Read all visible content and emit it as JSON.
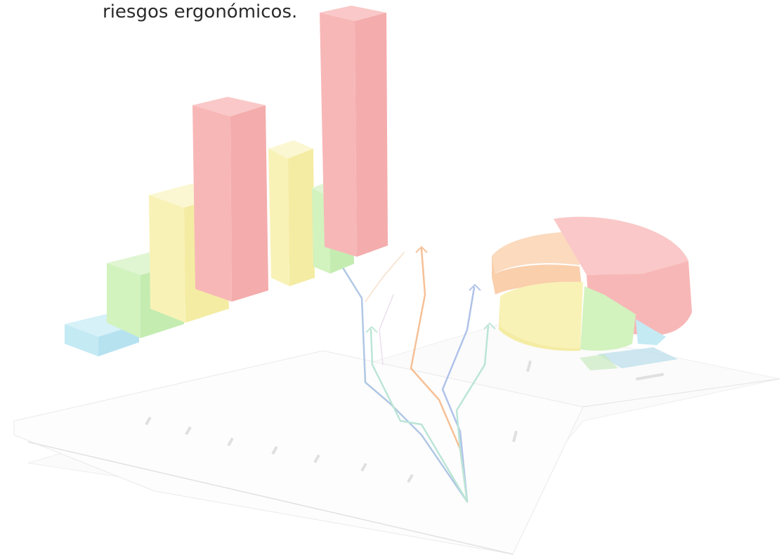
{
  "document": {
    "caption": "riesgos ergonómicos."
  },
  "illustration": {
    "description_icon": "decorative-chart-illustration-icon",
    "palette": {
      "red": "#f7a8a8",
      "red_dark": "#f29a9a",
      "yellow": "#f8f0a8",
      "green": "#c9efb0",
      "blue": "#b8e6f2",
      "orange": "#f9c59a",
      "paper": "#fcfcfc",
      "line_blue": "#8fb0d9",
      "line_orange": "#f3a56a",
      "line_green": "#9fdcc6"
    }
  }
}
